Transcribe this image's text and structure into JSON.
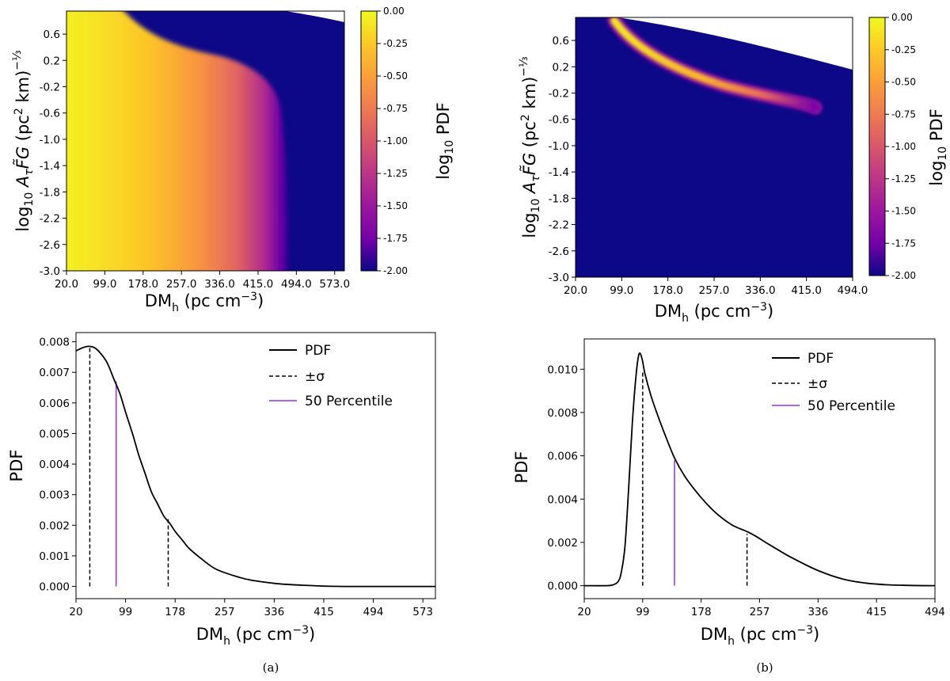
{
  "chart_data": [
    {
      "id": "a-top",
      "type": "heatmap",
      "xlabel_main": "DM",
      "xlabel_sub": "h",
      "xlabel_unit": " (pc cm",
      "xlabel_exp": "−3",
      "xlabel_close": ")",
      "ylabel": "log10 AτF̃G (pc2 km)^(-1/3)",
      "xticks": [
        "20.0",
        "99.0",
        "178.0",
        "257.0",
        "336.0",
        "415.0",
        "494.0",
        "573.0"
      ],
      "xlim": [
        20,
        593
      ],
      "yticks": [
        "0.6",
        "0.2",
        "-0.2",
        "-0.6",
        "-1.0",
        "-1.4",
        "-1.8",
        "-2.2",
        "-2.6",
        "-3.0"
      ],
      "ylim": [
        -3.0,
        0.95
      ],
      "colorbar": {
        "label": "log10 PDF",
        "ticks": [
          "0.00",
          "-0.25",
          "-0.50",
          "-0.75",
          "-1.00",
          "-1.25",
          "-1.50",
          "-1.75",
          "-2.00"
        ],
        "range": [
          -2.0,
          0.0
        ]
      }
    },
    {
      "id": "b-top",
      "type": "heatmap",
      "xticks": [
        "20.0",
        "99.0",
        "178.0",
        "257.0",
        "336.0",
        "415.0",
        "494.0"
      ],
      "xlim": [
        20,
        494
      ],
      "yticks": [
        "0.6",
        "0.2",
        "-0.2",
        "-0.6",
        "-1.0",
        "-1.4",
        "-1.8",
        "-2.2",
        "-2.6",
        "-3.0"
      ],
      "ylim": [
        -3.0,
        0.95
      ],
      "colorbar": {
        "label": "log10 PDF",
        "ticks": [
          "0.00",
          "-0.25",
          "-0.50",
          "-0.75",
          "-1.00",
          "-1.25",
          "-1.50",
          "-1.75",
          "-2.00"
        ],
        "range": [
          -2.0,
          0.0
        ]
      }
    },
    {
      "id": "a-bottom",
      "type": "line",
      "ylabel": "PDF",
      "xticks": [
        "20",
        "99",
        "178",
        "257",
        "336",
        "415",
        "494",
        "573"
      ],
      "xlim": [
        20,
        593
      ],
      "yticks": [
        "0.008",
        "0.007",
        "0.006",
        "0.005",
        "0.004",
        "0.003",
        "0.002",
        "0.001",
        "0.000"
      ],
      "ylim": [
        -0.0004,
        0.0083
      ],
      "series": [
        {
          "name": "PDF",
          "x": [
            20,
            30,
            40,
            50,
            60,
            70,
            80,
            90,
            99,
            110,
            120,
            130,
            140,
            150,
            160,
            170,
            178,
            190,
            200,
            220,
            240,
            257,
            280,
            300,
            336,
            360,
            380,
            415,
            450,
            494,
            530,
            573,
            593
          ],
          "y": [
            0.0077,
            0.0078,
            0.00785,
            0.0078,
            0.0076,
            0.0073,
            0.0068,
            0.0063,
            0.0057,
            0.005,
            0.0043,
            0.0037,
            0.0031,
            0.0027,
            0.0023,
            0.00205,
            0.0018,
            0.0015,
            0.00125,
            0.0009,
            0.0006,
            0.00045,
            0.0003,
            0.0002,
            0.0001,
            6e-05,
            4e-05,
            1e-05,
            0.0,
            0.0,
            0.0,
            0.0,
            0.0
          ]
        }
      ],
      "sigma_lines": [
        {
          "x": 42,
          "y": 0.0078
        },
        {
          "x": 167,
          "y": 0.0022
        }
      ],
      "median_line": {
        "x": 84,
        "y": 0.0067
      },
      "legend": [
        "PDF",
        "±σ",
        "50 Percentile"
      ]
    },
    {
      "id": "b-bottom",
      "type": "line",
      "ylabel": "PDF",
      "xticks": [
        "20",
        "99",
        "178",
        "257",
        "336",
        "415",
        "494"
      ],
      "xlim": [
        20,
        494
      ],
      "yticks": [
        "0.010",
        "0.008",
        "0.006",
        "0.004",
        "0.002",
        "0.000"
      ],
      "ylim": [
        -0.0006,
        0.0114
      ],
      "series": [
        {
          "name": "PDF",
          "x": [
            20,
            50,
            60,
            66,
            70,
            75,
            80,
            85,
            90,
            94,
            98,
            102,
            110,
            120,
            130,
            142,
            155,
            170,
            185,
            200,
            220,
            240,
            251,
            270,
            300,
            336,
            370,
            400,
            430,
            460,
            494
          ],
          "y": [
            0.0,
            0.0,
            5e-05,
            0.0002,
            0.0006,
            0.0018,
            0.0045,
            0.0075,
            0.0097,
            0.0107,
            0.0105,
            0.0098,
            0.0088,
            0.0078,
            0.0069,
            0.0059,
            0.0051,
            0.0044,
            0.0038,
            0.0033,
            0.0028,
            0.0025,
            0.0023,
            0.0019,
            0.0013,
            0.0007,
            0.0003,
            0.00012,
            4e-05,
            1e-05,
            0.0
          ]
        }
      ],
      "sigma_lines": [
        {
          "x": 99,
          "y": 0.0099
        },
        {
          "x": 240,
          "y": 0.0024
        }
      ],
      "median_line": {
        "x": 142,
        "y": 0.0058
      },
      "legend": [
        "PDF",
        "±σ",
        "50 Percentile"
      ]
    }
  ],
  "captions": [
    "(a)",
    "(b)"
  ],
  "colors": {
    "pdf_line": "#000000",
    "sigma_line": "#000000",
    "median_line": "#9b30d9",
    "heat_low": "#0d0887",
    "heat_high": "#f0f921"
  }
}
